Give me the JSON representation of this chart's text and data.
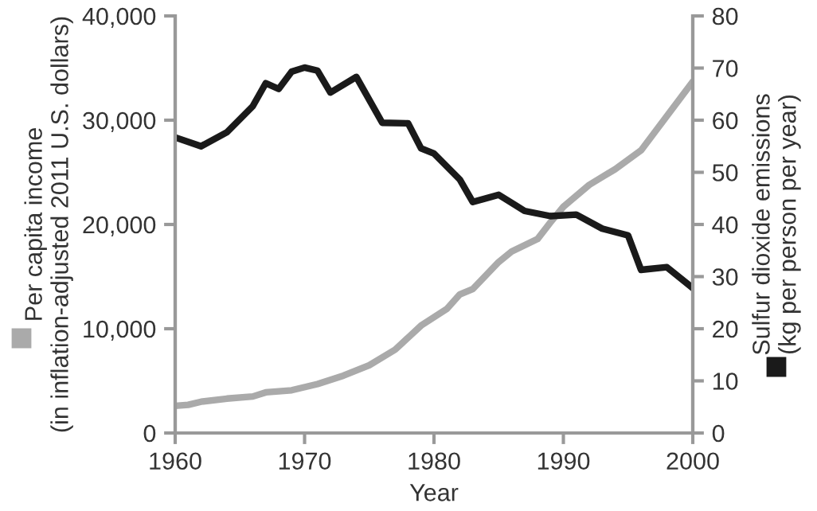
{
  "chart_data": {
    "type": "line",
    "xlabel": "Year",
    "ylabel": "Per capita income\n(in inflation-adjusted 2011 U.S. dollars)",
    "y2label": "Sulfur dioxide emissions\n(kg per person per year)",
    "xlim": [
      1960,
      2000
    ],
    "xticks": [
      1960,
      1970,
      1980,
      1990,
      2000
    ],
    "ylim": [
      0,
      40000
    ],
    "yticks": [
      {
        "value": 0,
        "label": "0"
      },
      {
        "value": 10000,
        "label": "10,000"
      },
      {
        "value": 20000,
        "label": "20,000"
      },
      {
        "value": 30000,
        "label": "30,000"
      },
      {
        "value": 40000,
        "label": "40,000"
      }
    ],
    "y2lim": [
      0,
      80
    ],
    "y2ticks": [
      0,
      10,
      20,
      30,
      40,
      50,
      60,
      70,
      80
    ],
    "grid": false,
    "legend": false,
    "series": [
      {
        "color": "#aaaaaa",
        "x": [
          1960,
          1961,
          1962,
          1964,
          1966,
          1967,
          1969,
          1971,
          1973,
          1975,
          1977,
          1979,
          1981,
          1982,
          1983,
          1985,
          1986,
          1988,
          1989,
          1990,
          1992,
          1994,
          1996,
          1998,
          2000
        ],
        "values": [
          2600,
          2700,
          3000,
          3300,
          3500,
          3900,
          4100,
          4700,
          5500,
          6500,
          8000,
          10300,
          11900,
          13300,
          13800,
          16400,
          17400,
          18600,
          20200,
          21700,
          23800,
          25300,
          27100,
          30400,
          33700
        ]
      },
      {
        "color": "#1a1a1a",
        "axis": "y2",
        "x": [
          1960,
          1962,
          1964,
          1966,
          1967,
          1968,
          1969,
          1970,
          1971,
          1972,
          1974,
          1976,
          1978,
          1979,
          1980,
          1982,
          1983,
          1985,
          1987,
          1989,
          1991,
          1993,
          1995,
          1996,
          1998,
          2000
        ],
        "values": [
          56.7,
          55.0,
          57.7,
          62.7,
          67.1,
          66.0,
          69.3,
          70.1,
          69.5,
          65.3,
          68.3,
          59.5,
          59.4,
          54.6,
          53.6,
          48.6,
          44.3,
          45.7,
          42.6,
          41.6,
          41.9,
          39.2,
          37.9,
          31.3,
          31.8,
          27.8
        ]
      }
    ]
  }
}
